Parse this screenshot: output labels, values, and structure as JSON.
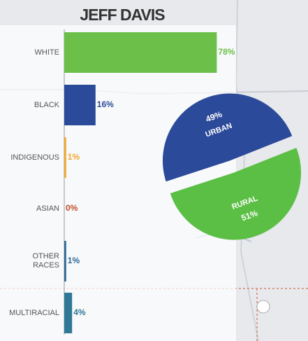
{
  "chart_data": [
    {
      "type": "bar",
      "orientation": "horizontal",
      "title": "JEFF DAVIS",
      "categories": [
        "WHITE",
        "BLACK",
        "INDIGENOUS",
        "ASIAN",
        "OTHER RACES",
        "MULTIRACIAL"
      ],
      "values": [
        78,
        16,
        1,
        0,
        1,
        4
      ],
      "value_labels": [
        "78%",
        "16%",
        "1%",
        "0%",
        "1%",
        "4%"
      ],
      "colors": [
        "#6cc04a",
        "#2c4a9a",
        "#f0a830",
        "#c0502a",
        "#2f6a9a",
        "#2f7896"
      ],
      "xlim": [
        0,
        100
      ]
    },
    {
      "type": "pie",
      "categories": [
        "URBAN",
        "RURAL"
      ],
      "values": [
        49,
        51
      ],
      "value_labels": [
        "49%",
        "51%"
      ],
      "colors": [
        "#2c4a9a",
        "#5cbf45"
      ]
    }
  ]
}
